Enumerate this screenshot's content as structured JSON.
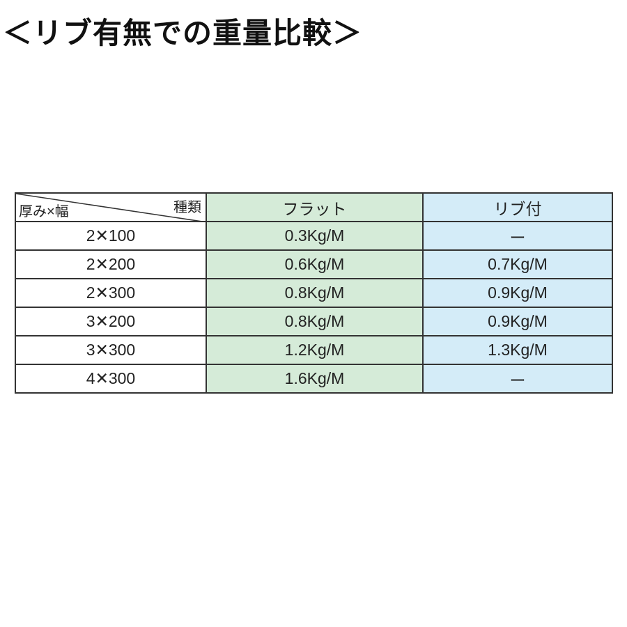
{
  "title": "＜リブ有無での重量比較＞",
  "table": {
    "corner_top_right": "種類",
    "corner_bottom_left": "厚み×幅",
    "headers": [
      "フラット",
      "リブ付"
    ],
    "rows": [
      {
        "size": "2✕100",
        "flat": "0.3Kg/M",
        "rib": "ー"
      },
      {
        "size": "2✕200",
        "flat": "0.6Kg/M",
        "rib": "0.7Kg/M"
      },
      {
        "size": "2✕300",
        "flat": "0.8Kg/M",
        "rib": "0.9Kg/M"
      },
      {
        "size": "3✕200",
        "flat": "0.8Kg/M",
        "rib": "0.9Kg/M"
      },
      {
        "size": "3✕300",
        "flat": "1.2Kg/M",
        "rib": "1.3Kg/M"
      },
      {
        "size": "4✕300",
        "flat": "1.6Kg/M",
        "rib": "ー"
      }
    ]
  },
  "colors": {
    "flat_column": "#d5ebd8",
    "rib_column": "#d4ecf8"
  }
}
